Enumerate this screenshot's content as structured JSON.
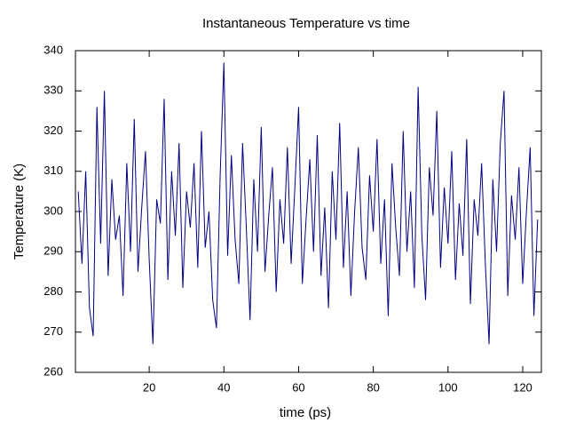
{
  "chart_data": {
    "type": "line",
    "title": "Instantaneous Temperature vs time",
    "xlabel": "time (ps)",
    "ylabel": "Temperature (K)",
    "x": [
      1,
      2,
      3,
      4,
      5,
      6,
      7,
      8,
      9,
      10,
      11,
      12,
      13,
      14,
      15,
      16,
      17,
      18,
      19,
      20,
      21,
      22,
      23,
      24,
      25,
      26,
      27,
      28,
      29,
      30,
      31,
      32,
      33,
      34,
      35,
      36,
      37,
      38,
      39,
      40,
      41,
      42,
      43,
      44,
      45,
      46,
      47,
      48,
      49,
      50,
      51,
      52,
      53,
      54,
      55,
      56,
      57,
      58,
      59,
      60,
      61,
      62,
      63,
      64,
      65,
      66,
      67,
      68,
      69,
      70,
      71,
      72,
      73,
      74,
      75,
      76,
      77,
      78,
      79,
      80,
      81,
      82,
      83,
      84,
      85,
      86,
      87,
      88,
      89,
      90,
      91,
      92,
      93,
      94,
      95,
      96,
      97,
      98,
      99,
      100,
      101,
      102,
      103,
      104,
      105,
      106,
      107,
      108,
      109,
      110,
      111,
      112,
      113,
      114,
      115,
      116,
      117,
      118,
      119,
      120,
      121,
      122,
      123,
      124
    ],
    "series": [
      {
        "color": "#000080",
        "values": [
          305,
          287,
          310,
          276,
          269,
          326,
          292,
          330,
          284,
          308,
          293,
          299,
          279,
          312,
          290,
          323,
          285,
          301,
          315,
          288,
          267,
          303,
          297,
          328,
          283,
          310,
          294,
          317,
          281,
          305,
          296,
          312,
          286,
          320,
          291,
          300,
          278,
          271,
          309,
          337,
          289,
          314,
          293,
          282,
          317,
          296,
          273,
          308,
          290,
          321,
          285,
          299,
          311,
          280,
          303,
          292,
          316,
          287,
          306,
          326,
          282,
          298,
          313,
          290,
          319,
          284,
          301,
          276,
          310,
          293,
          322,
          286,
          305,
          279,
          300,
          316,
          291,
          283,
          309,
          295,
          318,
          287,
          303,
          274,
          312,
          296,
          284,
          320,
          290,
          305,
          281,
          331,
          294,
          278,
          311,
          299,
          325,
          286,
          306,
          292,
          315,
          283,
          302,
          289,
          318,
          277,
          303,
          294,
          312,
          287,
          267,
          308,
          290,
          317,
          330,
          279,
          304,
          293,
          311,
          282,
          300,
          316,
          274,
          298
        ]
      }
    ],
    "xlim": [
      0.25,
      125
    ],
    "ylim": [
      260,
      340
    ],
    "xticks": [
      20,
      40,
      60,
      80,
      100,
      120
    ],
    "yticks": [
      260,
      270,
      280,
      290,
      300,
      310,
      320,
      330,
      340
    ]
  }
}
